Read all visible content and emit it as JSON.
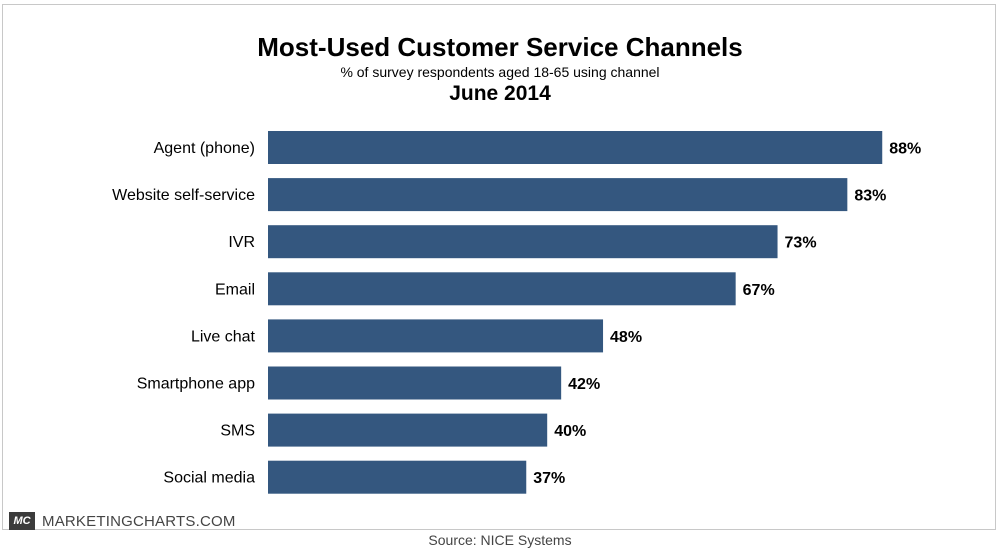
{
  "header": {
    "title": "Most-Used Customer Service Channels",
    "subtitle": "% of survey respondents aged 18-65 using channel",
    "period": "June 2014"
  },
  "footer": {
    "brand_logo": "MC",
    "brand_name": "MARKETINGCHARTS.COM",
    "source": "Source: NICE Systems"
  },
  "colors": {
    "bar": "#34577f",
    "text": "#000000"
  },
  "chart_data": {
    "type": "bar",
    "orientation": "horizontal",
    "title": "Most-Used Customer Service Channels",
    "subtitle": "% of survey respondents aged 18-65 using channel",
    "categories": [
      "Agent (phone)",
      "Website self-service",
      "IVR",
      "Email",
      "Live chat",
      "Smartphone app",
      "SMS",
      "Social media"
    ],
    "values": [
      88,
      83,
      73,
      67,
      48,
      42,
      40,
      37
    ],
    "value_labels": [
      "88%",
      "83%",
      "73%",
      "67%",
      "48%",
      "42%",
      "40%",
      "37%"
    ],
    "xlim": [
      0,
      100
    ],
    "grid": false,
    "legend": "none"
  }
}
